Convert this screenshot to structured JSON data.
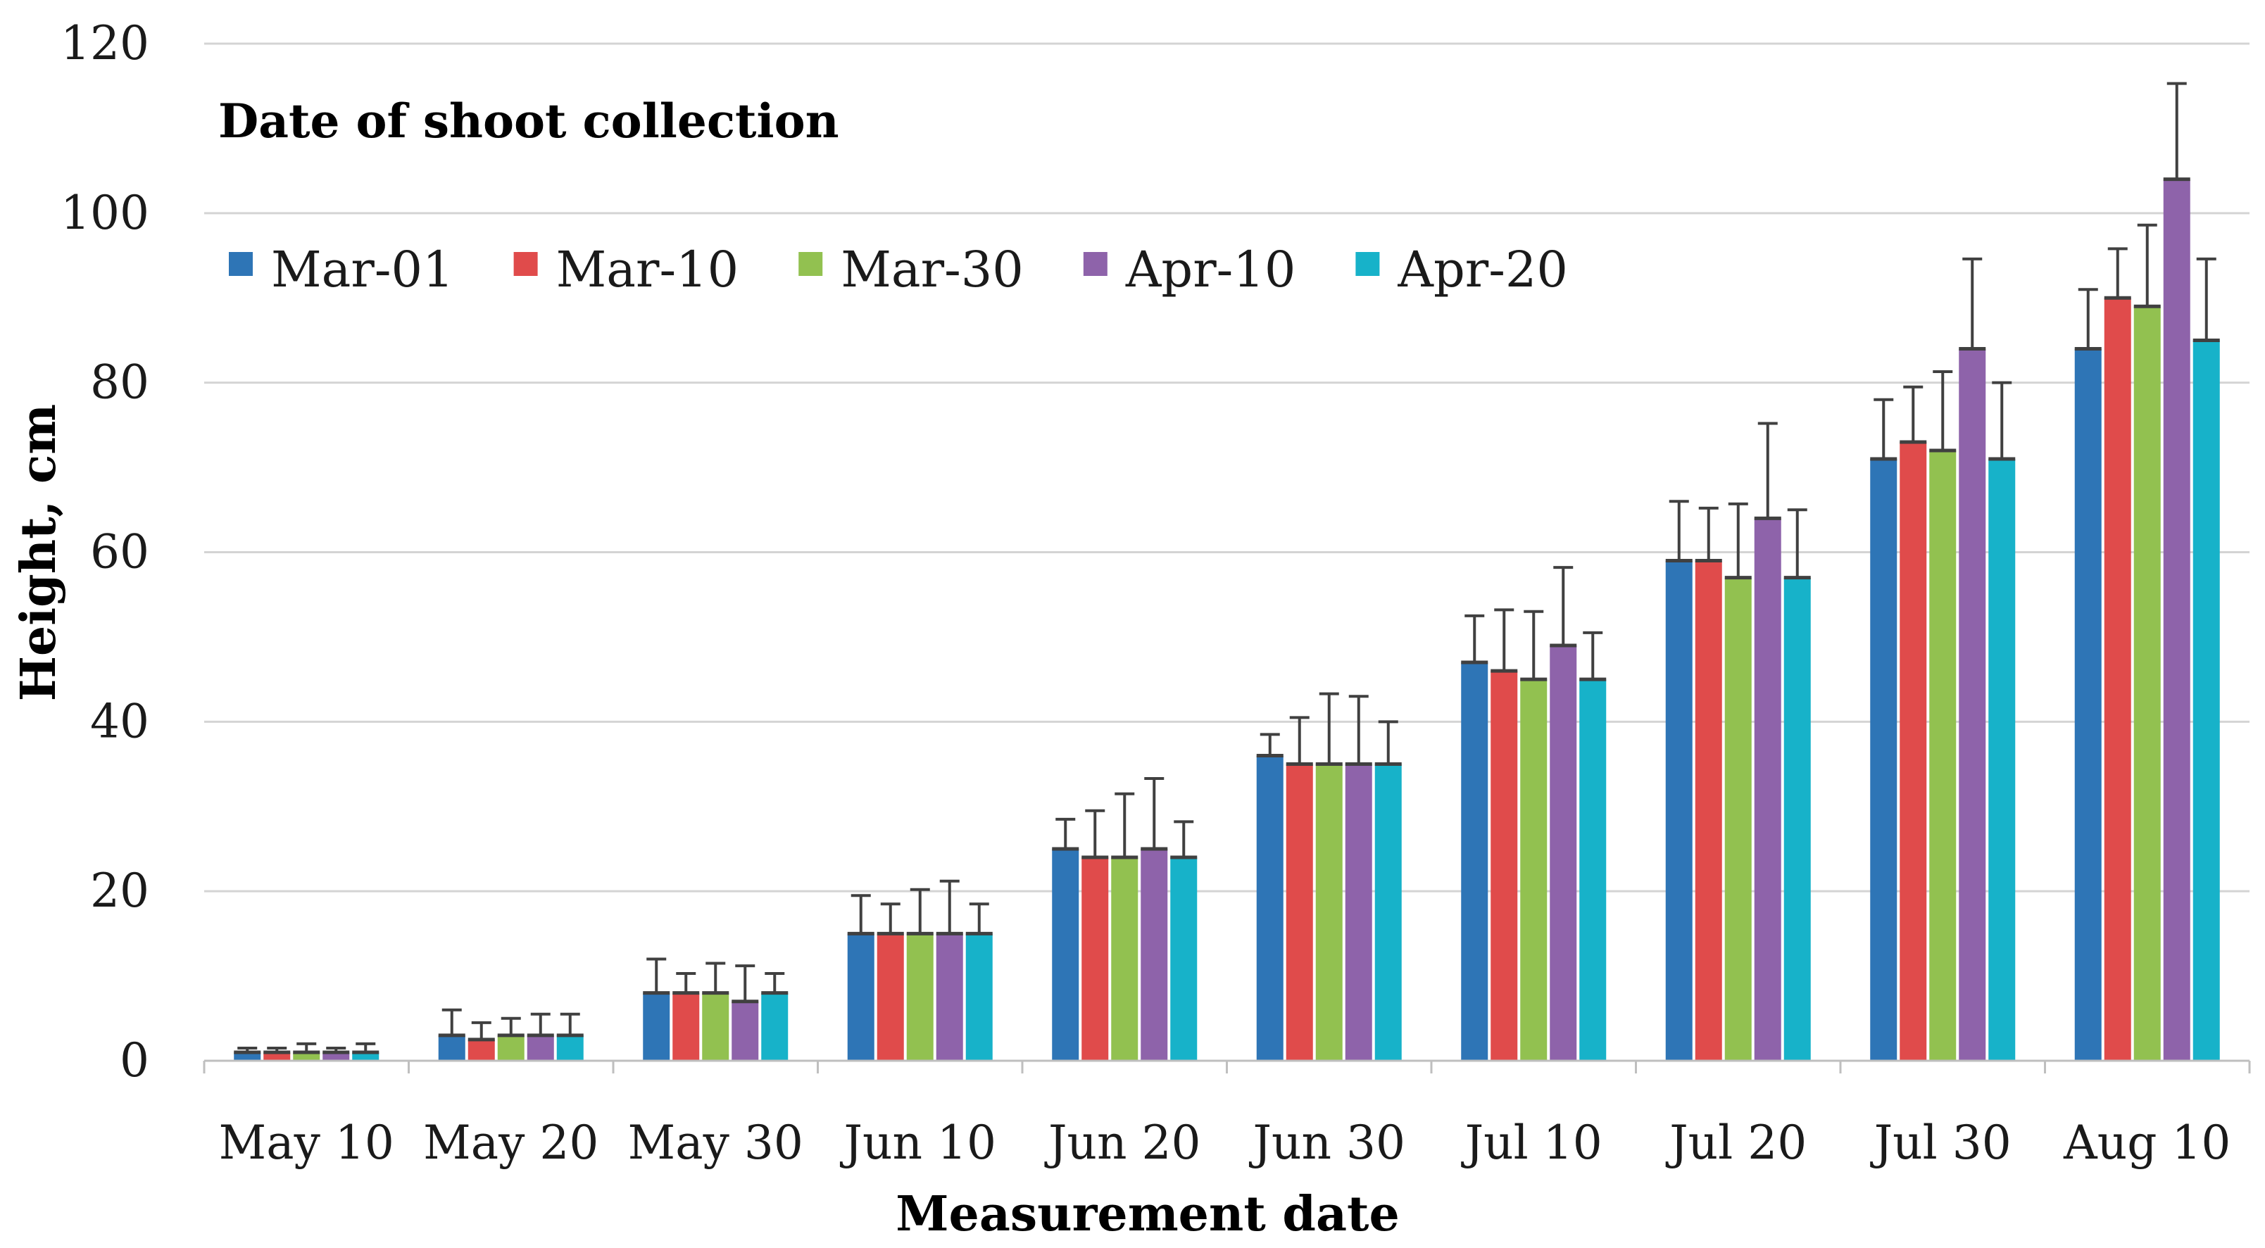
{
  "chart_data": {
    "type": "bar",
    "title": "",
    "xlabel": "Measurement date",
    "ylabel": "Height, cm",
    "ylim": [
      0,
      120
    ],
    "yticks": [
      0,
      20,
      40,
      60,
      80,
      100,
      120
    ],
    "grid": true,
    "legend": {
      "title": "Date of shoot collection",
      "position": "top-left"
    },
    "categories": [
      "May 10",
      "May 20",
      "May 30",
      "Jun 10",
      "Jun 20",
      "Jun 30",
      "Jul 10",
      "Jul 20",
      "Jul 30",
      "Aug 10"
    ],
    "series": [
      {
        "name": "Mar-01",
        "color": "#2E75B6",
        "values": [
          1,
          3,
          8,
          15,
          25,
          36,
          47,
          59,
          71,
          84
        ],
        "errors": [
          0.5,
          3,
          4,
          4.5,
          3.5,
          2.5,
          5.5,
          7,
          7,
          7
        ]
      },
      {
        "name": "Mar-10",
        "color": "#E04B4B",
        "values": [
          1,
          2.5,
          8,
          15,
          24,
          35,
          46,
          59,
          73,
          90
        ],
        "errors": [
          0.5,
          2,
          2.3,
          3.5,
          5.5,
          5.5,
          7.2,
          6.2,
          6.5,
          5.8
        ]
      },
      {
        "name": "Mar-30",
        "color": "#92C150",
        "values": [
          1,
          3,
          8,
          15,
          24,
          35,
          45,
          57,
          72,
          89
        ],
        "errors": [
          1,
          2,
          3.5,
          5.2,
          7.5,
          8.3,
          8,
          8.7,
          9.3,
          9.6
        ]
      },
      {
        "name": "Apr-10",
        "color": "#8E63AA",
        "values": [
          1,
          3,
          7,
          15,
          25,
          35,
          49,
          64,
          84,
          104
        ],
        "errors": [
          0.5,
          2.5,
          4.2,
          6.2,
          8.3,
          8,
          9.2,
          11.2,
          10.6,
          11.3
        ]
      },
      {
        "name": "Apr-20",
        "color": "#17B2C9",
        "values": [
          1,
          3,
          8,
          15,
          24,
          35,
          45,
          57,
          71,
          85
        ],
        "errors": [
          1,
          2.5,
          2.3,
          3.5,
          4.2,
          5,
          5.5,
          8,
          9,
          9.6
        ]
      }
    ]
  }
}
